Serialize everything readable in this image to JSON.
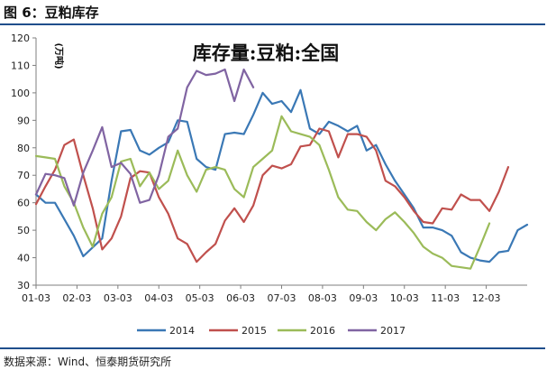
{
  "figure_label": "图 6：豆粕库存",
  "source_text": "数据来源：Wind、恒泰期货研究所",
  "chart_data": {
    "type": "line",
    "title": "库存量:豆粕:全国",
    "ylabel": "(万吨)",
    "xlabel": "",
    "ylim": [
      30,
      120
    ],
    "yticks": [
      30,
      40,
      50,
      60,
      70,
      80,
      90,
      100,
      110,
      120
    ],
    "xticks": [
      "01-03",
      "02-03",
      "03-03",
      "04-03",
      "05-03",
      "06-03",
      "07-03",
      "08-03",
      "09-03",
      "10-03",
      "11-03",
      "12-03"
    ],
    "xlim": [
      1,
      53
    ],
    "legend_position": "bottom",
    "grid": false,
    "series": [
      {
        "name": "2014",
        "color": "#3a78b5",
        "x": [
          1,
          2,
          3,
          5,
          6,
          8,
          9,
          10,
          11,
          12,
          13,
          14,
          15,
          16,
          17,
          18,
          19,
          20,
          21,
          22,
          23,
          24,
          25,
          26,
          27,
          28,
          29,
          30,
          31,
          32,
          33,
          34,
          35,
          36,
          37,
          38,
          39,
          40,
          41,
          42,
          43,
          44,
          45,
          46,
          47,
          48,
          49,
          50,
          51,
          52,
          53
        ],
        "values": [
          63,
          60,
          60,
          48,
          40.5,
          47,
          68,
          86,
          86.5,
          79,
          77.5,
          80,
          82,
          90,
          89.5,
          76,
          73,
          72,
          85,
          85.5,
          85,
          92,
          100,
          96,
          97,
          93,
          101,
          87,
          85,
          89.5,
          88,
          86,
          88,
          79,
          81,
          74,
          68,
          63,
          58,
          51,
          51,
          50,
          48,
          42,
          40,
          39,
          38.5,
          42,
          42.5,
          50,
          52
        ]
      },
      {
        "name": "2015",
        "color": "#c0504d",
        "x": [
          1,
          2,
          3,
          4,
          5,
          6,
          7,
          8,
          9,
          10,
          11,
          12,
          13,
          14,
          15,
          16,
          17,
          18,
          19,
          20,
          21,
          22,
          23,
          24,
          25,
          26,
          27,
          28,
          29,
          30,
          31,
          32,
          33,
          34,
          35,
          36,
          37,
          38,
          39,
          40,
          41,
          42,
          43,
          44,
          45,
          46,
          47,
          48,
          49,
          50,
          51,
          52,
          53
        ],
        "values": [
          59.5,
          66,
          72,
          81,
          83,
          70,
          58,
          43,
          47,
          55,
          69,
          71.5,
          71,
          62,
          56,
          47,
          45,
          38.5,
          42,
          45,
          53.5,
          58,
          53,
          59,
          70,
          73.5,
          72.5,
          74,
          80.5,
          81,
          87,
          86,
          76.5,
          85,
          85,
          84,
          79,
          68,
          66,
          62,
          57,
          53,
          52.5,
          58,
          57.5,
          63,
          61,
          61,
          57,
          64,
          73,
          null,
          null
        ]
      },
      {
        "name": "2016",
        "color": "#9bbb59",
        "x": [
          1,
          2,
          3,
          4,
          5,
          6,
          7,
          8,
          9,
          10,
          11,
          12,
          13,
          14,
          15,
          16,
          17,
          18,
          19,
          20,
          21,
          22,
          23,
          24,
          25,
          26,
          27,
          28,
          29,
          30,
          31,
          32,
          33,
          34,
          35,
          36,
          37,
          38,
          39,
          40,
          41,
          42,
          43,
          44,
          45,
          46,
          47,
          48,
          49,
          50,
          51,
          52,
          53
        ],
        "values": [
          77,
          76.5,
          76,
          66,
          60,
          51,
          44,
          56,
          62,
          75,
          76,
          66,
          71,
          65,
          68,
          79,
          70,
          64,
          72,
          73,
          72,
          65,
          62,
          73,
          76,
          79,
          91.5,
          86,
          85,
          84,
          81,
          72,
          62,
          57.5,
          57,
          53,
          50,
          54,
          56.5,
          53,
          49,
          44,
          41.5,
          40,
          37,
          36.5,
          36,
          44,
          52.5,
          null,
          null,
          null,
          null
        ]
      },
      {
        "name": "2017",
        "color": "#8064a2",
        "x": [
          1,
          2,
          3,
          4,
          5,
          6,
          7,
          8,
          9,
          10,
          11,
          12,
          13,
          14,
          15,
          16,
          17,
          18,
          19,
          20,
          21,
          22,
          23,
          24,
          25,
          26,
          27,
          28
        ],
        "values": [
          63,
          70.5,
          70,
          69,
          59,
          71,
          79,
          87.5,
          73,
          74.5,
          70.5,
          60,
          61,
          70,
          84,
          87,
          102,
          108,
          106.5,
          107,
          108.5,
          97,
          108.5,
          102,
          null,
          null,
          null,
          null
        ]
      }
    ]
  }
}
